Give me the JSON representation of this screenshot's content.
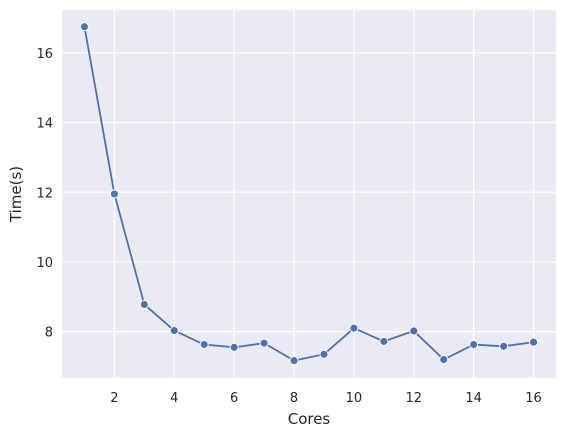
{
  "chart_data": {
    "type": "line",
    "x_label": "Cores",
    "y_label": "Time(s)",
    "x": [
      1,
      2,
      3,
      4,
      5,
      6,
      7,
      8,
      9,
      10,
      11,
      12,
      13,
      14,
      15,
      16
    ],
    "series": [
      {
        "color": "#4c72b0",
        "values": [
          16.75,
          11.95,
          8.78,
          8.03,
          7.63,
          7.55,
          7.67,
          7.17,
          7.35,
          8.1,
          7.72,
          8.02,
          7.2,
          7.63,
          7.58,
          7.7
        ]
      }
    ],
    "xlim": [
      0.25,
      16.75
    ],
    "ylim": [
      6.67,
      17.23
    ],
    "xticks": [
      2,
      4,
      6,
      8,
      10,
      12,
      14,
      16
    ],
    "yticks": [
      8,
      10,
      12,
      14,
      16
    ],
    "grid": true,
    "background": "#eaeaf2"
  }
}
